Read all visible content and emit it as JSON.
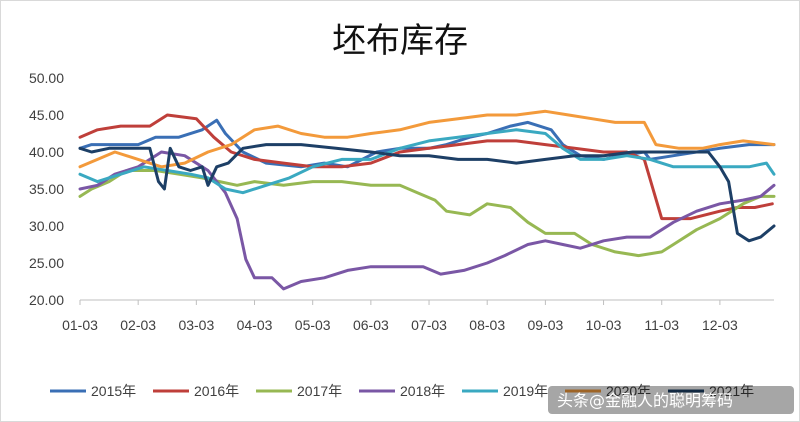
{
  "colors": {
    "2015": "#3a6fb5",
    "2016": "#bf3f3a",
    "2017": "#97b853",
    "2018": "#7a57a5",
    "2019": "#3aa9c1",
    "2020": "#f39a3b",
    "2021": "#1d3f66"
  },
  "watermark": "头条@金融人的聪明筹码",
  "chart_data": {
    "type": "line",
    "title": "坯布库存",
    "xlabel": "",
    "ylabel": "",
    "categories": [
      "01-03",
      "02-03",
      "03-03",
      "04-03",
      "05-03",
      "06-03",
      "07-03",
      "08-03",
      "09-03",
      "10-03",
      "11-03",
      "12-03"
    ],
    "x_range_months": [
      1,
      12.93
    ],
    "ylim": [
      20,
      50
    ],
    "yticks": [
      "20.00",
      "25.00",
      "30.00",
      "35.00",
      "40.00",
      "45.00",
      "50.00"
    ],
    "grid": false,
    "legend": "bottom",
    "series": [
      {
        "name": "2015年",
        "color_key": "2015",
        "points": [
          [
            1,
            40.5
          ],
          [
            1.2,
            41
          ],
          [
            1.5,
            41
          ],
          [
            2,
            41
          ],
          [
            2.3,
            42
          ],
          [
            2.7,
            42
          ],
          [
            3.1,
            43
          ],
          [
            3.35,
            44.3
          ],
          [
            3.5,
            42.5
          ],
          [
            3.8,
            40
          ],
          [
            4.2,
            38.5
          ],
          [
            4.8,
            38
          ],
          [
            5.2,
            38.5
          ],
          [
            5.6,
            38
          ],
          [
            6.1,
            40
          ],
          [
            6.5,
            40.5
          ],
          [
            7.0,
            40.5
          ],
          [
            7.3,
            41
          ],
          [
            7.7,
            42
          ],
          [
            8.0,
            42.5
          ],
          [
            8.4,
            43.5
          ],
          [
            8.7,
            44
          ],
          [
            9.1,
            43
          ],
          [
            9.3,
            41
          ],
          [
            9.6,
            39.5
          ],
          [
            10.0,
            39
          ],
          [
            10.3,
            39.5
          ],
          [
            10.7,
            40
          ],
          [
            10.8,
            39
          ],
          [
            11.2,
            39.5
          ],
          [
            11.6,
            40
          ],
          [
            12.0,
            40.5
          ],
          [
            12.5,
            41
          ],
          [
            12.93,
            41
          ]
        ]
      },
      {
        "name": "2016年",
        "color_key": "2016",
        "points": [
          [
            1,
            42
          ],
          [
            1.3,
            43
          ],
          [
            1.7,
            43.5
          ],
          [
            2.2,
            43.5
          ],
          [
            2.5,
            45
          ],
          [
            3.0,
            44.5
          ],
          [
            3.3,
            42
          ],
          [
            3.6,
            40
          ],
          [
            4.0,
            39
          ],
          [
            4.5,
            38.5
          ],
          [
            5.0,
            38
          ],
          [
            5.5,
            38
          ],
          [
            6.0,
            38.5
          ],
          [
            6.5,
            40
          ],
          [
            7.0,
            40.5
          ],
          [
            7.5,
            41
          ],
          [
            8.0,
            41.5
          ],
          [
            8.5,
            41.5
          ],
          [
            9.0,
            41
          ],
          [
            9.5,
            40.5
          ],
          [
            10.0,
            40
          ],
          [
            10.4,
            40
          ],
          [
            10.7,
            39
          ],
          [
            10.85,
            35
          ],
          [
            11.0,
            31
          ],
          [
            11.5,
            31
          ],
          [
            12.0,
            32
          ],
          [
            12.3,
            32.5
          ],
          [
            12.6,
            32.5
          ],
          [
            12.9,
            33
          ]
        ]
      },
      {
        "name": "2017年",
        "color_key": "2017",
        "points": [
          [
            1,
            34
          ],
          [
            1.2,
            35
          ],
          [
            1.5,
            36
          ],
          [
            1.8,
            37.5
          ],
          [
            2.3,
            37.5
          ],
          [
            2.7,
            37
          ],
          [
            3.1,
            36.5
          ],
          [
            3.4,
            36
          ],
          [
            3.7,
            35.5
          ],
          [
            4.0,
            36
          ],
          [
            4.5,
            35.5
          ],
          [
            5.0,
            36
          ],
          [
            5.5,
            36
          ],
          [
            6.0,
            35.5
          ],
          [
            6.5,
            35.5
          ],
          [
            6.8,
            34.5
          ],
          [
            7.1,
            33.5
          ],
          [
            7.3,
            32
          ],
          [
            7.7,
            31.5
          ],
          [
            8.0,
            33
          ],
          [
            8.4,
            32.5
          ],
          [
            8.7,
            30.5
          ],
          [
            9.0,
            29
          ],
          [
            9.5,
            29
          ],
          [
            9.8,
            27.5
          ],
          [
            10.2,
            26.5
          ],
          [
            10.6,
            26
          ],
          [
            11.0,
            26.5
          ],
          [
            11.2,
            27.5
          ],
          [
            11.6,
            29.5
          ],
          [
            12.0,
            31
          ],
          [
            12.4,
            33
          ],
          [
            12.7,
            34
          ],
          [
            12.93,
            34
          ]
        ]
      },
      {
        "name": "2018年",
        "color_key": "2018",
        "points": [
          [
            1,
            35
          ],
          [
            1.3,
            35.5
          ],
          [
            1.6,
            37
          ],
          [
            2.0,
            38
          ],
          [
            2.4,
            40
          ],
          [
            2.8,
            39.5
          ],
          [
            3.2,
            37.5
          ],
          [
            3.5,
            34.5
          ],
          [
            3.7,
            31
          ],
          [
            3.85,
            25.5
          ],
          [
            4.0,
            23
          ],
          [
            4.3,
            23
          ],
          [
            4.5,
            21.5
          ],
          [
            4.8,
            22.5
          ],
          [
            5.2,
            23
          ],
          [
            5.6,
            24
          ],
          [
            6.0,
            24.5
          ],
          [
            6.4,
            24.5
          ],
          [
            6.9,
            24.5
          ],
          [
            7.2,
            23.5
          ],
          [
            7.6,
            24
          ],
          [
            8.0,
            25
          ],
          [
            8.3,
            26
          ],
          [
            8.7,
            27.5
          ],
          [
            9.0,
            28
          ],
          [
            9.3,
            27.5
          ],
          [
            9.6,
            27
          ],
          [
            10.0,
            28
          ],
          [
            10.4,
            28.5
          ],
          [
            10.8,
            28.5
          ],
          [
            11.2,
            30.5
          ],
          [
            11.6,
            32
          ],
          [
            12.0,
            33
          ],
          [
            12.4,
            33.5
          ],
          [
            12.7,
            34
          ],
          [
            12.93,
            35.5
          ]
        ]
      },
      {
        "name": "2019年",
        "color_key": "2019",
        "points": [
          [
            1,
            37
          ],
          [
            1.3,
            36
          ],
          [
            1.7,
            37
          ],
          [
            2.1,
            38
          ],
          [
            2.5,
            37.5
          ],
          [
            2.9,
            37
          ],
          [
            3.2,
            36.5
          ],
          [
            3.5,
            35
          ],
          [
            3.8,
            34.5
          ],
          [
            4.2,
            35.5
          ],
          [
            4.6,
            36.5
          ],
          [
            5.0,
            38
          ],
          [
            5.5,
            39
          ],
          [
            6.0,
            39
          ],
          [
            6.5,
            40.5
          ],
          [
            7.0,
            41.5
          ],
          [
            7.5,
            42
          ],
          [
            8.0,
            42.5
          ],
          [
            8.5,
            43
          ],
          [
            9.0,
            42.5
          ],
          [
            9.3,
            40.5
          ],
          [
            9.6,
            39
          ],
          [
            10.0,
            39
          ],
          [
            10.4,
            39.5
          ],
          [
            10.8,
            39
          ],
          [
            11.2,
            38
          ],
          [
            11.6,
            38
          ],
          [
            12.0,
            38
          ],
          [
            12.5,
            38
          ],
          [
            12.8,
            38.5
          ],
          [
            12.93,
            37
          ]
        ]
      },
      {
        "name": "2020年",
        "color_key": "2020",
        "points": [
          [
            1,
            38
          ],
          [
            1.3,
            39
          ],
          [
            1.6,
            40
          ],
          [
            2.0,
            39
          ],
          [
            2.4,
            38
          ],
          [
            2.8,
            38.5
          ],
          [
            3.2,
            40
          ],
          [
            3.6,
            41
          ],
          [
            4.0,
            43
          ],
          [
            4.4,
            43.5
          ],
          [
            4.8,
            42.5
          ],
          [
            5.2,
            42
          ],
          [
            5.6,
            42
          ],
          [
            6.0,
            42.5
          ],
          [
            6.5,
            43
          ],
          [
            7.0,
            44
          ],
          [
            7.5,
            44.5
          ],
          [
            8.0,
            45
          ],
          [
            8.5,
            45
          ],
          [
            9.0,
            45.5
          ],
          [
            9.4,
            45
          ],
          [
            9.8,
            44.5
          ],
          [
            10.2,
            44
          ],
          [
            10.7,
            44
          ],
          [
            10.9,
            41
          ],
          [
            11.3,
            40.5
          ],
          [
            11.7,
            40.5
          ],
          [
            12.0,
            41
          ],
          [
            12.4,
            41.5
          ],
          [
            12.93,
            41
          ]
        ]
      },
      {
        "name": "2021年",
        "color_key": "2021",
        "points": [
          [
            1,
            40.5
          ],
          [
            1.2,
            40
          ],
          [
            1.5,
            40.5
          ],
          [
            1.8,
            40.5
          ],
          [
            2.2,
            40.5
          ],
          [
            2.35,
            36
          ],
          [
            2.45,
            35
          ],
          [
            2.55,
            40.5
          ],
          [
            2.7,
            38
          ],
          [
            2.9,
            37.5
          ],
          [
            3.1,
            38
          ],
          [
            3.2,
            35.5
          ],
          [
            3.35,
            38
          ],
          [
            3.55,
            38.5
          ],
          [
            3.8,
            40.5
          ],
          [
            4.2,
            41
          ],
          [
            4.8,
            41
          ],
          [
            5.4,
            40.5
          ],
          [
            6.0,
            40
          ],
          [
            6.5,
            39.5
          ],
          [
            7.0,
            39.5
          ],
          [
            7.5,
            39
          ],
          [
            8.0,
            39
          ],
          [
            8.5,
            38.5
          ],
          [
            9.0,
            39
          ],
          [
            9.5,
            39.5
          ],
          [
            10.0,
            39.5
          ],
          [
            10.5,
            40
          ],
          [
            11.0,
            40
          ],
          [
            11.5,
            40
          ],
          [
            11.8,
            40
          ],
          [
            12.0,
            38
          ],
          [
            12.15,
            36
          ],
          [
            12.3,
            29
          ],
          [
            12.5,
            28
          ],
          [
            12.7,
            28.5
          ],
          [
            12.93,
            30
          ]
        ]
      }
    ]
  }
}
